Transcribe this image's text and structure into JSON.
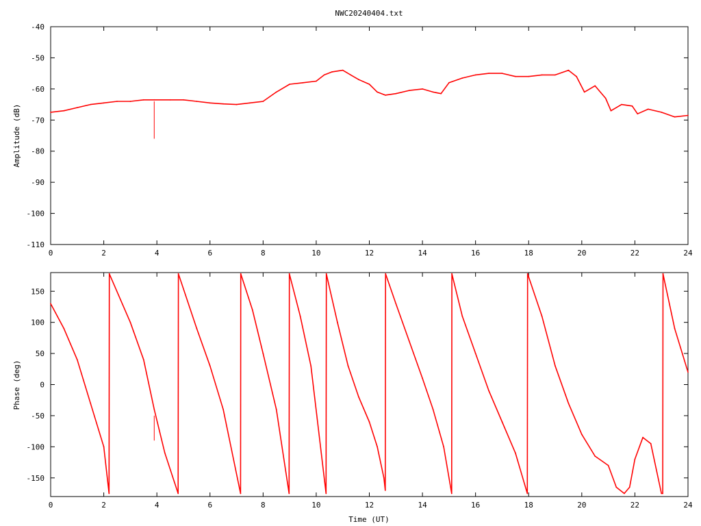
{
  "figure": {
    "title": "NWC20240404.txt",
    "line_color": "#ff0000"
  },
  "chart_data": [
    {
      "type": "line",
      "title": "NWC20240404.txt",
      "xlabel": "",
      "ylabel": "Amplitude (dB)",
      "xlim": [
        0,
        24
      ],
      "ylim": [
        -110,
        -40
      ],
      "xticks": [
        0,
        2,
        4,
        6,
        8,
        10,
        12,
        14,
        16,
        18,
        20,
        22,
        24
      ],
      "yticks": [
        -110,
        -100,
        -90,
        -80,
        -70,
        -60,
        -50,
        -40
      ],
      "grid": false,
      "series": [
        {
          "color": "#ff0000",
          "x": [
            0,
            0.5,
            1,
            1.5,
            2,
            2.5,
            3,
            3.5,
            3.9,
            4.5,
            5,
            5.5,
            6,
            6.5,
            7,
            7.5,
            8,
            8.5,
            9,
            9.5,
            10,
            10.3,
            10.6,
            11,
            11.3,
            11.6,
            12,
            12.3,
            12.6,
            13,
            13.5,
            14,
            14.4,
            14.7,
            15,
            15.5,
            16,
            16.5,
            17,
            17.5,
            18,
            18.5,
            19,
            19.5,
            19.8,
            20.1,
            20.5,
            20.9,
            21.1,
            21.5,
            21.9,
            22.1,
            22.5,
            23,
            23.5,
            24
          ],
          "y": [
            -67.5,
            -67,
            -66,
            -65,
            -64.5,
            -64,
            -64,
            -63.5,
            -63.5,
            -63.5,
            -63.5,
            -64,
            -64.5,
            -64.8,
            -65,
            -64.5,
            -64,
            -61,
            -58.5,
            -58,
            -57.5,
            -55.5,
            -54.5,
            -54,
            -55.5,
            -57,
            -58.5,
            -61,
            -62,
            -61.5,
            -60.5,
            -60,
            -61,
            -61.5,
            -58,
            -56.5,
            -55.5,
            -55,
            -55,
            -56,
            -56,
            -55.5,
            -55.5,
            -54,
            -56,
            -61,
            -59,
            -63,
            -67,
            -65,
            -65.5,
            -68,
            -66.5,
            -67.5,
            -69,
            -68.5
          ]
        }
      ],
      "annotations": [
        {
          "x": 3.9,
          "y_from": -64,
          "y_to": -76
        }
      ]
    },
    {
      "type": "line",
      "title": "",
      "xlabel": "Time (UT)",
      "ylabel": "Phase (deg)",
      "xlim": [
        0,
        24
      ],
      "ylim": [
        -180,
        180
      ],
      "xticks": [
        0,
        2,
        4,
        6,
        8,
        10,
        12,
        14,
        16,
        18,
        20,
        22,
        24
      ],
      "yticks": [
        -150,
        -100,
        -50,
        0,
        50,
        100,
        150
      ],
      "grid": false,
      "series": [
        {
          "color": "#ff0000",
          "x": [
            0,
            0.5,
            1,
            1.5,
            2,
            2.2,
            2.21,
            3,
            3.5,
            3.9,
            4.3,
            4.8,
            4.81,
            5.5,
            6,
            6.5,
            7.15,
            7.16,
            7.6,
            8,
            8.5,
            8.98,
            8.99,
            9.4,
            9.8,
            10.37,
            10.38,
            10.8,
            11.2,
            11.6,
            12,
            12.3,
            12.55,
            12.6,
            12.61,
            13,
            13.5,
            14,
            14.4,
            14.8,
            15.1,
            15.11,
            15.5,
            16,
            16.5,
            17,
            17.5,
            17.95,
            17.96,
            18.5,
            19,
            19.5,
            20,
            20.5,
            21,
            21.3,
            21.6,
            21.8,
            22,
            22.3,
            22.6,
            23,
            23.05,
            23.06,
            23.5,
            24
          ],
          "y": [
            130,
            90,
            40,
            -30,
            -100,
            -175,
            178,
            100,
            40,
            -40,
            -110,
            -175,
            178,
            90,
            30,
            -40,
            -175,
            178,
            120,
            50,
            -40,
            -175,
            178,
            110,
            30,
            -175,
            178,
            100,
            30,
            -20,
            -60,
            -100,
            -150,
            -170,
            178,
            130,
            70,
            10,
            -40,
            -100,
            -175,
            178,
            110,
            50,
            -10,
            -60,
            -110,
            -175,
            178,
            110,
            30,
            -30,
            -80,
            -115,
            -130,
            -165,
            -175,
            -165,
            -120,
            -85,
            -95,
            -175,
            -175,
            178,
            90,
            20
          ]
        }
      ],
      "annotations": [
        {
          "x": 3.9,
          "y_from": -50,
          "y_to": -90
        }
      ]
    }
  ]
}
